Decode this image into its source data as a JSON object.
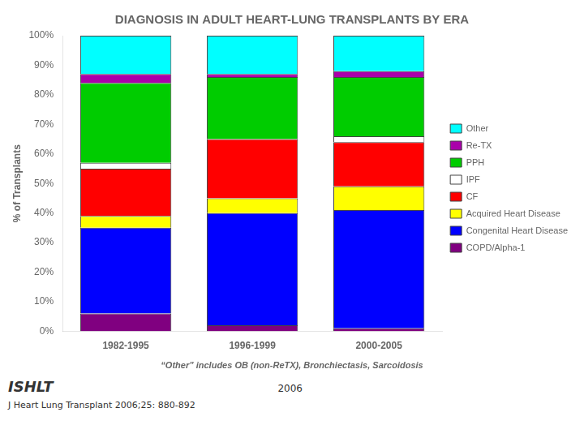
{
  "chart_data": {
    "type": "bar",
    "stacked": true,
    "title": "DIAGNOSIS IN ADULT HEART-LUNG TRANSPLANTS BY ERA",
    "subtitle": "“Other” includes OB (non-ReTX), Bronchiectasis, Sarcoidosis",
    "y_label": "% of Transplants",
    "annotations": [
      "ISHLT",
      "2006",
      "J Heart Lung Transplant 2006;25: 880-892"
    ],
    "categories": [
      "1982-1995",
      "1996-1999",
      "2000-2005"
    ],
    "series": [
      {
        "name": "COPD/Alpha-1",
        "color": "#800080",
        "values": [
          6,
          2,
          1
        ]
      },
      {
        "name": "Congenital Heart Disease",
        "color": "#0000FF",
        "values": [
          29,
          38,
          40
        ]
      },
      {
        "name": "Acquired Heart Disease",
        "color": "#FFFF00",
        "values": [
          4,
          5,
          8
        ]
      },
      {
        "name": "CF",
        "color": "#FF0000",
        "values": [
          16,
          20,
          15
        ]
      },
      {
        "name": "IPF",
        "color": "#FFFFFF",
        "values": [
          2,
          0,
          2
        ]
      },
      {
        "name": "PPH",
        "color": "#00CC00",
        "values": [
          27,
          21,
          20
        ]
      },
      {
        "name": "Re-TX",
        "color": "#AA00AA",
        "values": [
          3,
          1,
          2
        ]
      },
      {
        "name": "Other",
        "color": "#00FFFF",
        "values": [
          13,
          13,
          12
        ]
      }
    ],
    "ylim": [
      0,
      100
    ],
    "yticks": [
      {
        "value": 0,
        "label": "0%"
      },
      {
        "value": 10,
        "label": "10%"
      },
      {
        "value": 20,
        "label": "20%"
      },
      {
        "value": 30,
        "label": "30%"
      },
      {
        "value": 40,
        "label": "40%"
      },
      {
        "value": 50,
        "label": "50%"
      },
      {
        "value": 60,
        "label": "60%"
      },
      {
        "value": 70,
        "label": "70%"
      },
      {
        "value": 80,
        "label": "80%"
      },
      {
        "value": 90,
        "label": "90%"
      },
      {
        "value": 100,
        "label": "100%"
      }
    ],
    "grid": false,
    "legend": "right"
  }
}
